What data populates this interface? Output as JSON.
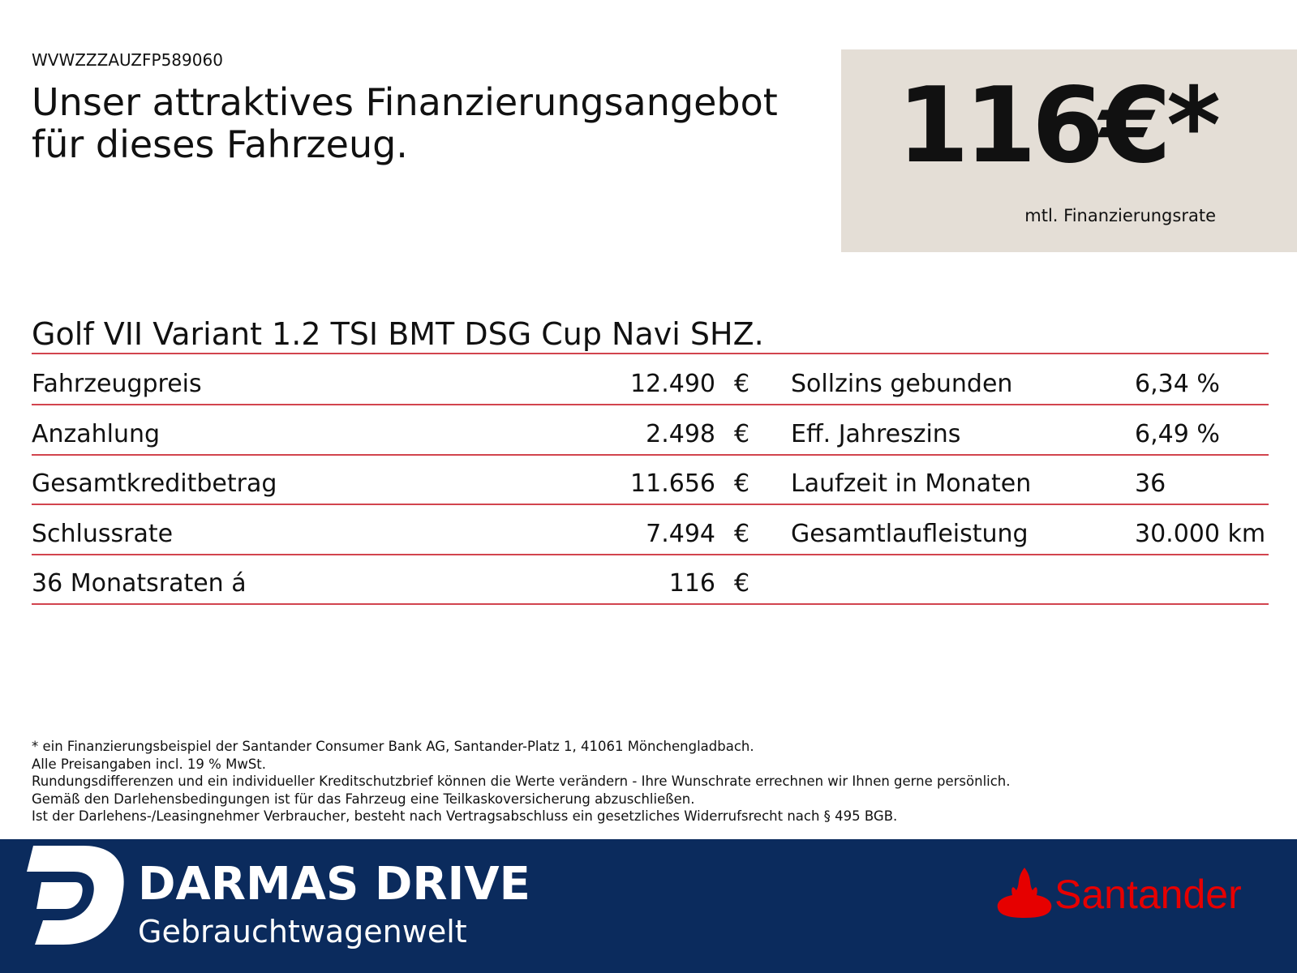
{
  "header": {
    "vin": "WVWZZZAUZFP589060",
    "title_lines": [
      "Unser attraktives Finanzierungsangebot",
      "für dieses Fahrzeug."
    ]
  },
  "price": {
    "amount": "116€*",
    "caption": "mtl. Finanzierungsrate"
  },
  "model": "Golf VII Variant 1.2 TSI BMT DSG Cup Navi SHZ.",
  "table": {
    "left_rows": [
      {
        "label": "Fahrzeugpreis",
        "value": "12.490",
        "unit": "€"
      },
      {
        "label": "Anzahlung",
        "value": "2.498",
        "unit": "€"
      },
      {
        "label": "Gesamtkreditbetrag",
        "value": "11.656",
        "unit": "€"
      },
      {
        "label": "Schlussrate",
        "value": "7.494",
        "unit": "€"
      },
      {
        "label": "36 Monatsraten á",
        "value": "116",
        "unit": "€"
      }
    ],
    "right_rows": [
      {
        "label": "Sollzins gebunden",
        "value": "6,34 %"
      },
      {
        "label": "Eff. Jahreszins",
        "value": "6,49 %"
      },
      {
        "label": "Laufzeit in Monaten",
        "value": "36"
      },
      {
        "label": "Gesamtlaufleistung",
        "value": "30.000 km"
      }
    ]
  },
  "footnotes": [
    "* ein Finanzierungsbeispiel der Santander Consumer Bank AG, Santander-Platz 1, 41061 Mönchengladbach.",
    "Alle Preisangaben incl. 19 % MwSt.",
    "Rundungsdifferenzen und ein individueller Kreditschutzbrief können die Werte verändern - Ihre Wunschrate errechnen wir Ihnen gerne persönlich.",
    "Gemäß den Darlehensbedingungen ist für das Fahrzeug eine Teilkaskoversicherung abzuschließen.",
    "Ist der Darlehens-/Leasingnehmer Verbraucher, besteht nach Vertragsabschluss ein gesetzliches Widerrufsrecht nach § 495 BGB."
  ],
  "footer": {
    "brand": "DARMAS DRIVE",
    "tagline": "Gebrauchtwagenwelt",
    "partner": "Santander"
  }
}
